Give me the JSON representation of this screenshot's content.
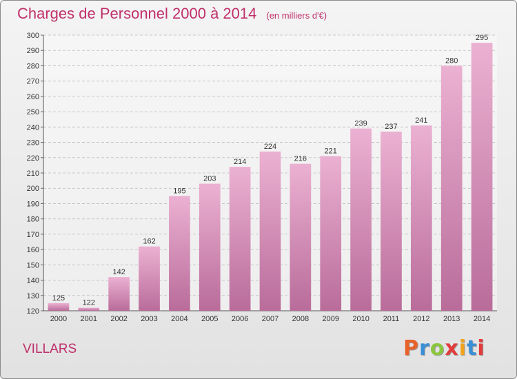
{
  "title": "Charges de Personnel 2000 à 2014",
  "unit_note": "(en milliers d'€)",
  "town": "VILLARS",
  "logo": {
    "text": "Proxiti",
    "colors": [
      "#e8622a",
      "#3a8fd6",
      "#8cc63f",
      "#e23b3b",
      "#f2a31b",
      "#3a8fd6",
      "#e23b3b"
    ]
  },
  "colors": {
    "title": "#c0306a",
    "bar_light": "#ebb1d2",
    "bar_dark": "#b96c9a"
  },
  "chart_data": {
    "type": "bar",
    "categories": [
      "2000",
      "2001",
      "2002",
      "2003",
      "2004",
      "2005",
      "2006",
      "2007",
      "2008",
      "2009",
      "2010",
      "2011",
      "2012",
      "2013",
      "2014"
    ],
    "values": [
      125,
      122,
      142,
      162,
      195,
      203,
      214,
      224,
      216,
      221,
      239,
      237,
      241,
      280,
      295
    ],
    "ylim": [
      120,
      300
    ],
    "yticks": [
      120,
      130,
      140,
      150,
      160,
      170,
      180,
      190,
      200,
      210,
      220,
      230,
      240,
      250,
      260,
      270,
      280,
      290,
      300
    ],
    "grid": true,
    "title": "Charges de Personnel 2000 à 2014"
  }
}
